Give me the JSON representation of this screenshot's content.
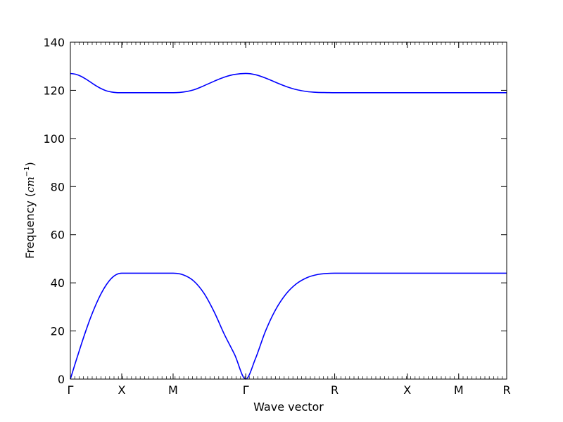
{
  "chart_data": {
    "type": "line",
    "title": "",
    "xlabel": "Wave vector",
    "ylabel_text": "Frequency",
    "ylabel_unit": "cm",
    "ylabel_unit_exp": "−1",
    "ylim": [
      0,
      140
    ],
    "xlim": [
      0,
      8.495
    ],
    "grid": false,
    "yticks": [
      0,
      20,
      40,
      60,
      80,
      100,
      120,
      140
    ],
    "xticks": [
      {
        "pos": 0.0,
        "label": "Γ"
      },
      {
        "pos": 1.0,
        "label": "X"
      },
      {
        "pos": 2.0,
        "label": "M"
      },
      {
        "pos": 3.414,
        "label": "Γ"
      },
      {
        "pos": 5.146,
        "label": "R"
      },
      {
        "pos": 6.56,
        "label": "X"
      },
      {
        "pos": 7.56,
        "label": "M"
      },
      {
        "pos": 8.495,
        "label": "R"
      }
    ],
    "line_color": "#0000ff",
    "series": [
      {
        "band": "acoustic",
        "x": [
          0.0,
          0.1,
          0.2,
          0.3,
          0.4,
          0.5,
          0.6,
          0.7,
          0.8,
          0.9,
          1.0,
          1.5,
          2.0,
          2.2,
          2.4,
          2.6,
          2.8,
          3.0,
          3.2,
          3.414,
          3.6,
          3.8,
          4.0,
          4.2,
          4.4,
          4.6,
          4.8,
          5.0,
          5.146,
          6.56,
          7.56,
          8.495
        ],
        "y": [
          0,
          6.9,
          13.6,
          20.0,
          25.9,
          31.1,
          35.6,
          39.2,
          41.9,
          43.5,
          44,
          44,
          44,
          43.3,
          40.8,
          35.7,
          27.9,
          18.5,
          10.1,
          0,
          8.3,
          20.0,
          29.0,
          35.4,
          39.6,
          42.1,
          43.4,
          43.9,
          44,
          44,
          44,
          44
        ]
      },
      {
        "band": "optical",
        "x": [
          0.0,
          0.1,
          0.2,
          0.3,
          0.4,
          0.5,
          0.6,
          0.7,
          0.8,
          0.9,
          1.0,
          1.5,
          2.0,
          2.2,
          2.4,
          2.6,
          2.8,
          3.0,
          3.2,
          3.414,
          3.6,
          3.8,
          4.0,
          4.2,
          4.4,
          4.6,
          4.8,
          5.0,
          5.146,
          6.56,
          7.56,
          8.495
        ],
        "y": [
          127,
          126.7,
          125.9,
          124.7,
          123.3,
          121.9,
          120.7,
          119.8,
          119.3,
          119.05,
          119,
          119,
          119,
          119.3,
          120.2,
          121.9,
          123.8,
          125.5,
          126.6,
          127,
          126.5,
          125.1,
          123.3,
          121.6,
          120.3,
          119.5,
          119.15,
          119.05,
          119,
          119,
          119,
          119
        ]
      }
    ]
  }
}
